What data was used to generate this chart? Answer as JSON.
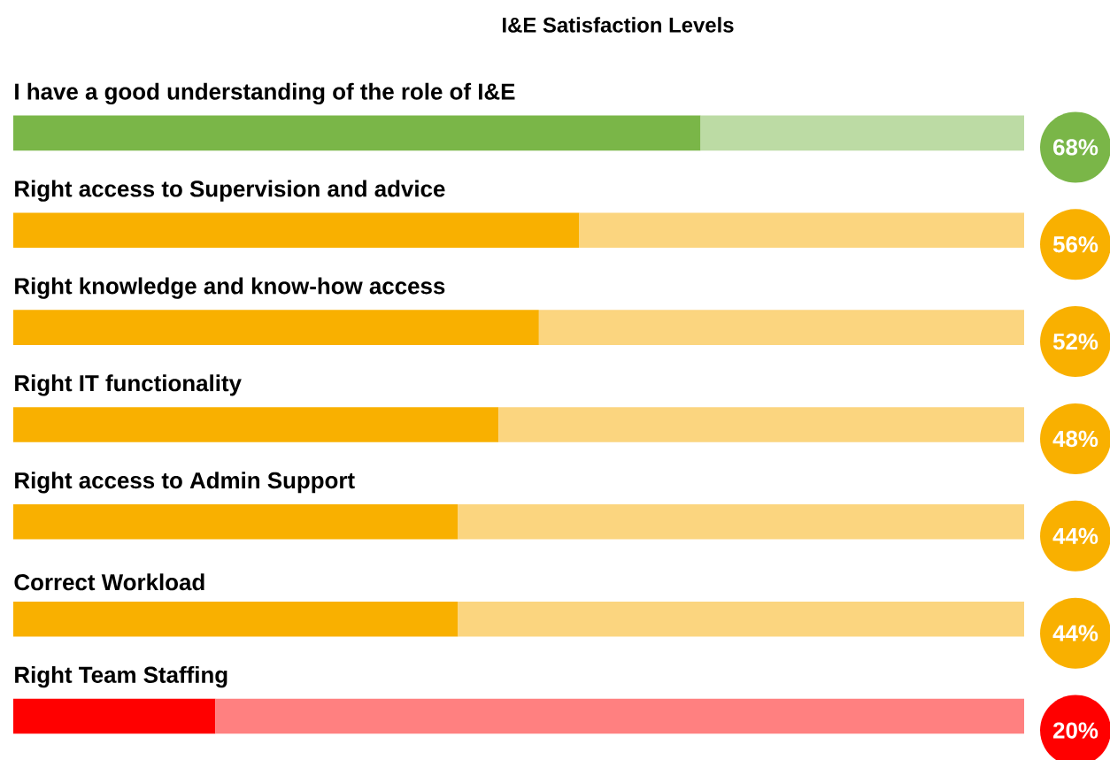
{
  "chart_data": {
    "type": "bar",
    "orientation": "horizontal",
    "stacked": true,
    "title": "I&E Satisfaction Levels",
    "categories": [
      "I have a good understanding of the role of I&E",
      "Right access to Supervision and advice",
      "Right knowledge and know-how access",
      "Right IT functionality",
      "Right access to Admin Support",
      "Correct Workload",
      "Right Team Staffing"
    ],
    "series": [
      {
        "colors": [
          "#7ab648",
          "#f9b000",
          "#f9b000",
          "#f9b000",
          "#f9b000",
          "#f9b000",
          "#ff0000"
        ],
        "values": [
          68,
          56,
          52,
          48,
          44,
          44,
          20
        ],
        "value_labels": [
          "68%",
          "56%",
          "52%",
          "48%",
          "44%",
          "44%",
          "20%"
        ]
      },
      {
        "colors": [
          "#bcdba4",
          "#fbd57f",
          "#fbd57f",
          "#fbd57f",
          "#fbd57f",
          "#fbd57f",
          "#ff8080"
        ],
        "values": [
          32,
          44,
          48,
          52,
          56,
          56,
          80
        ]
      }
    ],
    "xlim": [
      0,
      100
    ]
  }
}
